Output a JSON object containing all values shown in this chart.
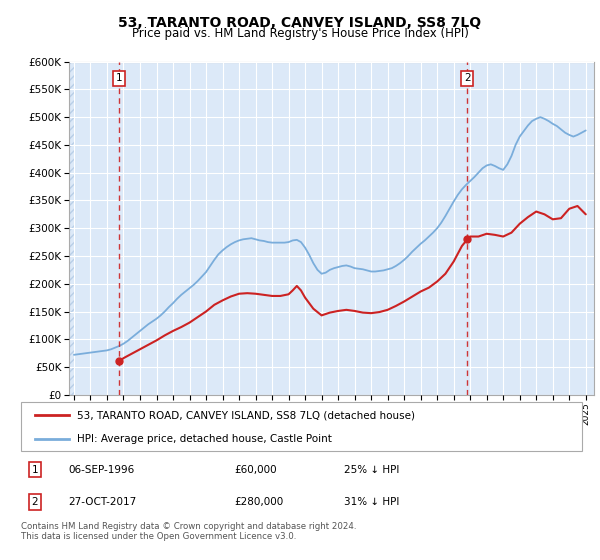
{
  "title": "53, TARANTO ROAD, CANVEY ISLAND, SS8 7LQ",
  "subtitle": "Price paid vs. HM Land Registry's House Price Index (HPI)",
  "ylim": [
    0,
    600000
  ],
  "yticks": [
    0,
    50000,
    100000,
    150000,
    200000,
    250000,
    300000,
    350000,
    400000,
    450000,
    500000,
    550000,
    600000
  ],
  "ytick_labels": [
    "£0",
    "£50K",
    "£100K",
    "£150K",
    "£200K",
    "£250K",
    "£300K",
    "£350K",
    "£400K",
    "£450K",
    "£500K",
    "£550K",
    "£600K"
  ],
  "transaction1": {
    "date_year": 1996.75,
    "price": 60000,
    "label": "1",
    "text": "06-SEP-1996",
    "amount": "£60,000",
    "pct": "25% ↓ HPI"
  },
  "transaction2": {
    "date_year": 2017.83,
    "price": 280000,
    "label": "2",
    "text": "27-OCT-2017",
    "amount": "£280,000",
    "pct": "31% ↓ HPI"
  },
  "legend_label_red": "53, TARANTO ROAD, CANVEY ISLAND, SS8 7LQ (detached house)",
  "legend_label_blue": "HPI: Average price, detached house, Castle Point",
  "footer": "Contains HM Land Registry data © Crown copyright and database right 2024.\nThis data is licensed under the Open Government Licence v3.0.",
  "bg_color": "#dce9f8",
  "hatch_color": "#b8cfe8",
  "grid_color": "#ffffff",
  "red_color": "#cc2222",
  "blue_color": "#7aaddb",
  "xlim_left": 1993.7,
  "xlim_right": 2025.5,
  "hpi_years": [
    1994.0,
    1994.25,
    1994.5,
    1994.75,
    1995.0,
    1995.25,
    1995.5,
    1995.75,
    1996.0,
    1996.25,
    1996.5,
    1996.75,
    1997.0,
    1997.25,
    1997.5,
    1997.75,
    1998.0,
    1998.25,
    1998.5,
    1998.75,
    1999.0,
    1999.25,
    1999.5,
    1999.75,
    2000.0,
    2000.25,
    2000.5,
    2000.75,
    2001.0,
    2001.25,
    2001.5,
    2001.75,
    2002.0,
    2002.25,
    2002.5,
    2002.75,
    2003.0,
    2003.25,
    2003.5,
    2003.75,
    2004.0,
    2004.25,
    2004.5,
    2004.75,
    2005.0,
    2005.25,
    2005.5,
    2005.75,
    2006.0,
    2006.25,
    2006.5,
    2006.75,
    2007.0,
    2007.25,
    2007.5,
    2007.75,
    2008.0,
    2008.25,
    2008.5,
    2008.75,
    2009.0,
    2009.25,
    2009.5,
    2009.75,
    2010.0,
    2010.25,
    2010.5,
    2010.75,
    2011.0,
    2011.25,
    2011.5,
    2011.75,
    2012.0,
    2012.25,
    2012.5,
    2012.75,
    2013.0,
    2013.25,
    2013.5,
    2013.75,
    2014.0,
    2014.25,
    2014.5,
    2014.75,
    2015.0,
    2015.25,
    2015.5,
    2015.75,
    2016.0,
    2016.25,
    2016.5,
    2016.75,
    2017.0,
    2017.25,
    2017.5,
    2017.75,
    2018.0,
    2018.25,
    2018.5,
    2018.75,
    2019.0,
    2019.25,
    2019.5,
    2019.75,
    2020.0,
    2020.25,
    2020.5,
    2020.75,
    2021.0,
    2021.25,
    2021.5,
    2021.75,
    2022.0,
    2022.25,
    2022.5,
    2022.75,
    2023.0,
    2023.25,
    2023.5,
    2023.75,
    2024.0,
    2024.25,
    2024.5,
    2024.75,
    2025.0
  ],
  "hpi_prices": [
    72000,
    73000,
    74000,
    75000,
    76000,
    77000,
    78000,
    79000,
    80000,
    82000,
    85000,
    88000,
    92000,
    97000,
    103000,
    109000,
    115000,
    121000,
    127000,
    132000,
    137000,
    143000,
    150000,
    158000,
    165000,
    173000,
    180000,
    186000,
    192000,
    198000,
    205000,
    213000,
    221000,
    232000,
    243000,
    253000,
    260000,
    266000,
    271000,
    275000,
    278000,
    280000,
    281000,
    282000,
    280000,
    278000,
    277000,
    275000,
    274000,
    274000,
    274000,
    274000,
    275000,
    278000,
    279000,
    275000,
    265000,
    252000,
    237000,
    225000,
    218000,
    220000,
    225000,
    228000,
    230000,
    232000,
    233000,
    231000,
    228000,
    227000,
    226000,
    224000,
    222000,
    222000,
    223000,
    224000,
    226000,
    228000,
    232000,
    237000,
    243000,
    250000,
    258000,
    265000,
    272000,
    278000,
    285000,
    292000,
    300000,
    310000,
    322000,
    335000,
    348000,
    360000,
    370000,
    378000,
    385000,
    392000,
    400000,
    408000,
    413000,
    415000,
    412000,
    408000,
    405000,
    415000,
    430000,
    450000,
    465000,
    475000,
    485000,
    493000,
    497000,
    500000,
    497000,
    493000,
    488000,
    484000,
    478000,
    472000,
    468000,
    465000,
    468000,
    472000,
    476000
  ],
  "red_years": [
    1996.75,
    1997.0,
    1997.5,
    1998.0,
    1998.5,
    1999.0,
    1999.5,
    2000.0,
    2000.5,
    2001.0,
    2001.5,
    2002.0,
    2002.5,
    2003.0,
    2003.5,
    2004.0,
    2004.5,
    2005.0,
    2005.5,
    2006.0,
    2006.5,
    2007.0,
    2007.25,
    2007.5,
    2007.75,
    2008.0,
    2008.5,
    2009.0,
    2009.5,
    2010.0,
    2010.5,
    2011.0,
    2011.5,
    2012.0,
    2012.5,
    2013.0,
    2013.5,
    2014.0,
    2014.5,
    2015.0,
    2015.5,
    2016.0,
    2016.5,
    2017.0,
    2017.5,
    2017.83,
    2018.0,
    2018.5,
    2019.0,
    2019.5,
    2020.0,
    2020.5,
    2021.0,
    2021.5,
    2022.0,
    2022.5,
    2023.0,
    2023.5,
    2024.0,
    2024.5,
    2025.0
  ],
  "red_prices": [
    60000,
    66000,
    74000,
    82000,
    90000,
    98000,
    107000,
    115000,
    122000,
    130000,
    140000,
    150000,
    162000,
    170000,
    177000,
    182000,
    183000,
    182000,
    180000,
    178000,
    178000,
    181000,
    188000,
    196000,
    188000,
    175000,
    155000,
    143000,
    148000,
    151000,
    153000,
    151000,
    148000,
    147000,
    149000,
    153000,
    160000,
    168000,
    177000,
    186000,
    193000,
    204000,
    218000,
    240000,
    268000,
    280000,
    285000,
    285000,
    290000,
    288000,
    285000,
    292000,
    308000,
    320000,
    330000,
    325000,
    316000,
    318000,
    335000,
    340000,
    325000
  ]
}
